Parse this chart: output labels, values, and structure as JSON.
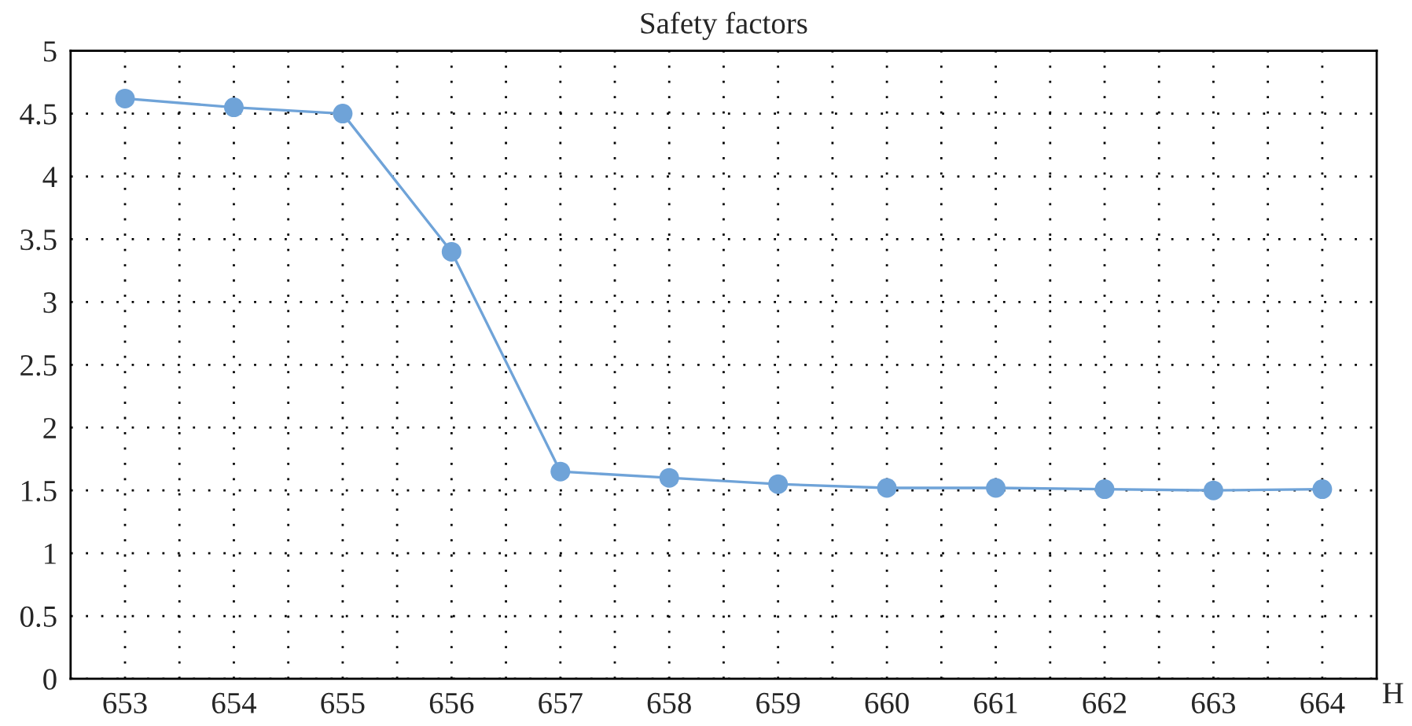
{
  "chart_data": {
    "type": "line",
    "title": "Safety factors",
    "xlabel": "H",
    "x": [
      653,
      654,
      655,
      656,
      657,
      658,
      659,
      660,
      661,
      662,
      663,
      664
    ],
    "series": [
      {
        "color": "#6fa3d8",
        "values": [
          4.62,
          4.55,
          4.5,
          3.4,
          1.65,
          1.6,
          1.55,
          1.52,
          1.52,
          1.51,
          1.5,
          1.51
        ]
      }
    ],
    "xlim": [
      652.5,
      664.5
    ],
    "xticks": [
      653,
      {
        "value": 653.5,
        "label": null
      },
      654,
      {
        "value": 654.5,
        "label": null
      },
      655,
      {
        "value": 655.5,
        "label": null
      },
      656,
      {
        "value": 656.5,
        "label": null
      },
      657,
      {
        "value": 657.5,
        "label": null
      },
      658,
      {
        "value": 658.5,
        "label": null
      },
      659,
      {
        "value": 659.5,
        "label": null
      },
      660,
      {
        "value": 660.5,
        "label": null
      },
      661,
      {
        "value": 661.5,
        "label": null
      },
      662,
      {
        "value": 662.5,
        "label": null
      },
      663,
      {
        "value": 663.5,
        "label": null
      },
      664
    ],
    "ylim": [
      0,
      5
    ],
    "yticks": [
      0,
      0.5,
      1,
      1.5,
      2,
      2.5,
      3,
      3.5,
      4,
      4.5,
      5
    ],
    "grid": true,
    "marker": "circle",
    "line_style": "solid"
  }
}
